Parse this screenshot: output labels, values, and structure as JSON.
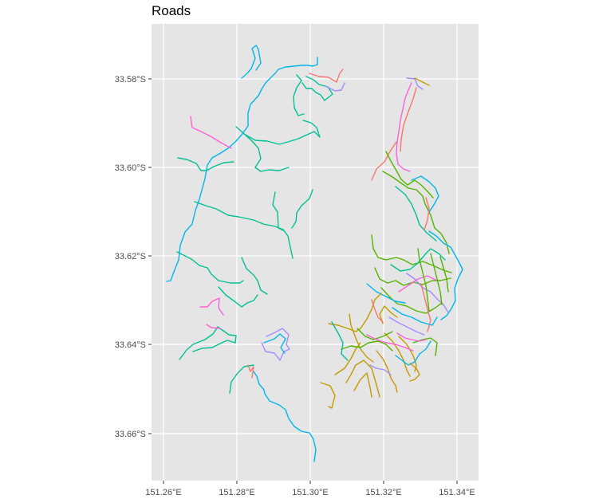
{
  "title": "Roads",
  "axes": {
    "x_ticks": [
      "151.26°E",
      "151.28°E",
      "151.30°E",
      "151.32°E",
      "151.34°E"
    ],
    "y_ticks": [
      "33.58°S",
      "33.60°S",
      "33.62°S",
      "33.64°S",
      "33.66°S"
    ]
  },
  "colors": {
    "panel_bg": "#e5e5e5",
    "grid": "#ffffff",
    "series": [
      "#f8766d",
      "#c49a00",
      "#53b400",
      "#00c094",
      "#00b6eb",
      "#a58aff",
      "#fb61d7"
    ]
  },
  "chart_data": {
    "type": "map",
    "title": "Roads",
    "xlim": [
      151.26,
      151.345
    ],
    "ylim": [
      -33.672,
      -33.568
    ],
    "grid": true,
    "legend": "none",
    "road_count": 7
  }
}
